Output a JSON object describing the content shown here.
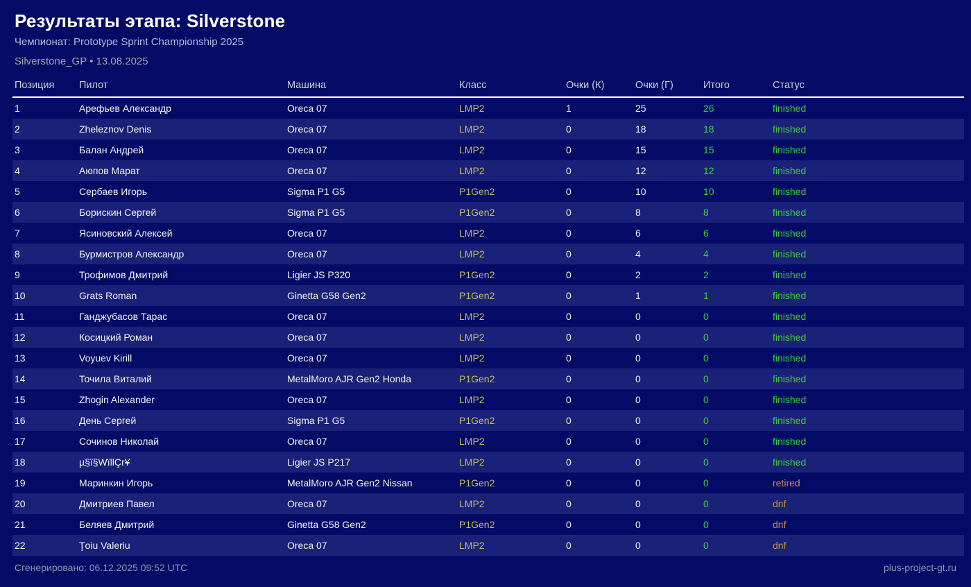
{
  "header": {
    "title": "Результаты этапа: Silverstone",
    "championship": "Чемпионат: Prototype Sprint Championship 2025",
    "event": "Silverstone_GP • 13.08.2025"
  },
  "table": {
    "columns": {
      "position": "Позиция",
      "pilot": "Пилот",
      "car": "Машина",
      "class": "Класс",
      "points_k": "Очки (К)",
      "points_g": "Очки (Г)",
      "total": "Итого",
      "status": "Статус"
    },
    "rows": [
      {
        "pos": "1",
        "pilot": "Арефьев Александр",
        "car": "Oreca 07",
        "class": "LMP2",
        "k": "1",
        "g": "25",
        "total": "26",
        "status": "finished"
      },
      {
        "pos": "2",
        "pilot": "Zheleznov Denis",
        "car": "Oreca 07",
        "class": "LMP2",
        "k": "0",
        "g": "18",
        "total": "18",
        "status": "finished"
      },
      {
        "pos": "3",
        "pilot": "Балан Андрей",
        "car": "Oreca 07",
        "class": "LMP2",
        "k": "0",
        "g": "15",
        "total": "15",
        "status": "finished"
      },
      {
        "pos": "4",
        "pilot": "Аюпов Марат",
        "car": "Oreca 07",
        "class": "LMP2",
        "k": "0",
        "g": "12",
        "total": "12",
        "status": "finished"
      },
      {
        "pos": "5",
        "pilot": "Сербаев Игорь",
        "car": "Sigma P1 G5",
        "class": "P1Gen2",
        "k": "0",
        "g": "10",
        "total": "10",
        "status": "finished"
      },
      {
        "pos": "6",
        "pilot": "Борискин Сергей",
        "car": "Sigma P1 G5",
        "class": "P1Gen2",
        "k": "0",
        "g": "8",
        "total": "8",
        "status": "finished"
      },
      {
        "pos": "7",
        "pilot": "Ясиновский Алексей",
        "car": "Oreca 07",
        "class": "LMP2",
        "k": "0",
        "g": "6",
        "total": "6",
        "status": "finished"
      },
      {
        "pos": "8",
        "pilot": "Бурмистров Александр",
        "car": "Oreca 07",
        "class": "LMP2",
        "k": "0",
        "g": "4",
        "total": "4",
        "status": "finished"
      },
      {
        "pos": "9",
        "pilot": "Трофимов Дмитрий",
        "car": "Ligier JS P320",
        "class": "P1Gen2",
        "k": "0",
        "g": "2",
        "total": "2",
        "status": "finished"
      },
      {
        "pos": "10",
        "pilot": "Grats Roman",
        "car": "Ginetta G58 Gen2",
        "class": "P1Gen2",
        "k": "0",
        "g": "1",
        "total": "1",
        "status": "finished"
      },
      {
        "pos": "11",
        "pilot": "Ганджубасов Тарас",
        "car": "Oreca 07",
        "class": "LMP2",
        "k": "0",
        "g": "0",
        "total": "0",
        "status": "finished"
      },
      {
        "pos": "12",
        "pilot": "Косицкий Роман",
        "car": "Oreca 07",
        "class": "LMP2",
        "k": "0",
        "g": "0",
        "total": "0",
        "status": "finished"
      },
      {
        "pos": "13",
        "pilot": "Voyuev Kirill",
        "car": "Oreca 07",
        "class": "LMP2",
        "k": "0",
        "g": "0",
        "total": "0",
        "status": "finished"
      },
      {
        "pos": "14",
        "pilot": "Точила Виталий",
        "car": "MetalMoro AJR Gen2 Honda",
        "class": "P1Gen2",
        "k": "0",
        "g": "0",
        "total": "0",
        "status": "finished"
      },
      {
        "pos": "15",
        "pilot": "Zhogin Alexander",
        "car": "Oreca 07",
        "class": "LMP2",
        "k": "0",
        "g": "0",
        "total": "0",
        "status": "finished"
      },
      {
        "pos": "16",
        "pilot": "День Сергей",
        "car": "Sigma P1 G5",
        "class": "P1Gen2",
        "k": "0",
        "g": "0",
        "total": "0",
        "status": "finished"
      },
      {
        "pos": "17",
        "pilot": "Сочинов Николай",
        "car": "Oreca 07",
        "class": "LMP2",
        "k": "0",
        "g": "0",
        "total": "0",
        "status": "finished"
      },
      {
        "pos": "18",
        "pilot": "µ§ï§WïllÇr¥",
        "car": "Ligier JS P217",
        "class": "LMP2",
        "k": "0",
        "g": "0",
        "total": "0",
        "status": "finished"
      },
      {
        "pos": "19",
        "pilot": "Маринкин Игорь",
        "car": "MetalMoro AJR Gen2 Nissan",
        "class": "P1Gen2",
        "k": "0",
        "g": "0",
        "total": "0",
        "status": "retired"
      },
      {
        "pos": "20",
        "pilot": "Дмитриев Павел",
        "car": "Oreca 07",
        "class": "LMP2",
        "k": "0",
        "g": "0",
        "total": "0",
        "status": "dnf"
      },
      {
        "pos": "21",
        "pilot": "Беляев Дмитрий",
        "car": "Ginetta G58 Gen2",
        "class": "P1Gen2",
        "k": "0",
        "g": "0",
        "total": "0",
        "status": "dnf"
      },
      {
        "pos": "22",
        "pilot": "Ţoiu Valeriu",
        "car": "Oreca 07",
        "class": "LMP2",
        "k": "0",
        "g": "0",
        "total": "0",
        "status": "dnf"
      }
    ]
  },
  "footer": {
    "generated": "Сгенерировано: 06.12.2025 09:52 UTC",
    "site": "plus-project-gt.ru"
  },
  "colors": {
    "background": "#040b66",
    "row_stripe": "#1a2178",
    "class_text": "#c5bd62",
    "total_green": "#3fcc3f",
    "status_finished": "#3fcc3f",
    "status_dnf": "#cf8c3a",
    "header_rule": "#ffffff"
  }
}
